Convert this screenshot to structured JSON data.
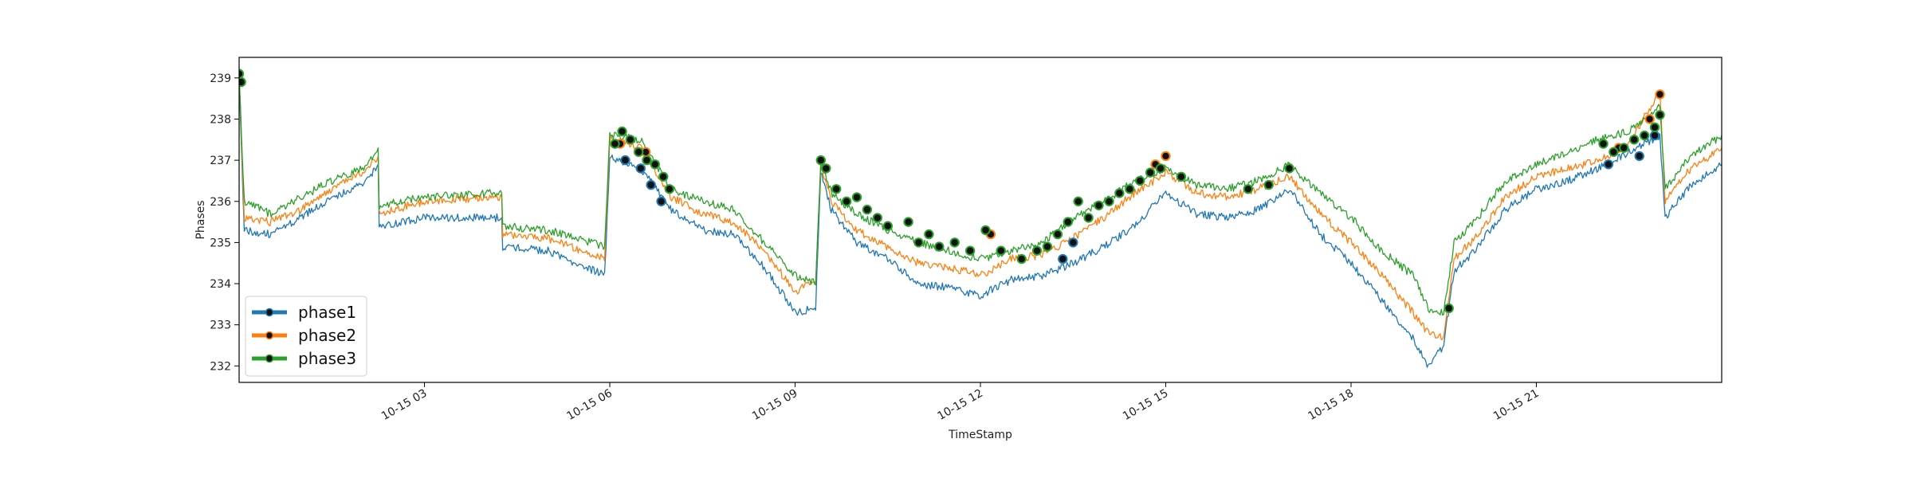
{
  "chart_data": {
    "type": "line",
    "title": "",
    "xlabel": "TimeStamp",
    "ylabel": "Phases",
    "x_range": [
      "2023-10-15 00:00",
      "2023-10-16 00:00"
    ],
    "ylim": [
      231.6,
      239.5
    ],
    "y_ticks": [
      232,
      233,
      234,
      235,
      236,
      237,
      238,
      239
    ],
    "x_ticks": [
      {
        "t": "2023-10-15 03:00",
        "label": "10-15 03"
      },
      {
        "t": "2023-10-15 06:00",
        "label": "10-15 06"
      },
      {
        "t": "2023-10-15 09:00",
        "label": "10-15 09"
      },
      {
        "t": "2023-10-15 12:00",
        "label": "10-15 12"
      },
      {
        "t": "2023-10-15 15:00",
        "label": "10-15 15"
      },
      {
        "t": "2023-10-15 18:00",
        "label": "10-15 18"
      },
      {
        "t": "2023-10-15 21:00",
        "label": "10-15 21"
      }
    ],
    "grid": false,
    "legend_position": "lower-left",
    "series": [
      {
        "name": "phase1",
        "color": "#1f77b4",
        "points": [
          [
            "2023-10-15 00:00",
            238.9
          ],
          [
            "2023-10-15 00:05",
            235.3
          ],
          [
            "2023-10-15 00:30",
            235.2
          ],
          [
            "2023-10-15 01:00",
            235.6
          ],
          [
            "2023-10-15 01:30",
            236.1
          ],
          [
            "2023-10-15 02:00",
            236.4
          ],
          [
            "2023-10-15 02:15",
            236.9
          ],
          [
            "2023-10-15 02:16",
            235.4
          ],
          [
            "2023-10-15 03:00",
            235.6
          ],
          [
            "2023-10-15 04:00",
            235.6
          ],
          [
            "2023-10-15 04:15",
            235.6
          ],
          [
            "2023-10-15 04:16",
            234.9
          ],
          [
            "2023-10-15 05:00",
            234.8
          ],
          [
            "2023-10-15 05:55",
            234.2
          ],
          [
            "2023-10-15 06:00",
            237.1
          ],
          [
            "2023-10-15 06:30",
            236.8
          ],
          [
            "2023-10-15 07:00",
            235.8
          ],
          [
            "2023-10-15 07:30",
            235.3
          ],
          [
            "2023-10-15 08:00",
            235.2
          ],
          [
            "2023-10-15 08:30",
            234.4
          ],
          [
            "2023-10-15 09:00",
            233.3
          ],
          [
            "2023-10-15 09:20",
            233.4
          ],
          [
            "2023-10-15 09:25",
            236.7
          ],
          [
            "2023-10-15 09:35",
            235.8
          ],
          [
            "2023-10-15 10:00",
            235.0
          ],
          [
            "2023-10-15 10:30",
            234.6
          ],
          [
            "2023-10-15 11:00",
            234.0
          ],
          [
            "2023-10-15 11:30",
            233.9
          ],
          [
            "2023-10-15 12:00",
            233.7
          ],
          [
            "2023-10-15 12:30",
            234.1
          ],
          [
            "2023-10-15 13:00",
            234.2
          ],
          [
            "2023-10-15 13:30",
            234.5
          ],
          [
            "2023-10-15 14:00",
            234.9
          ],
          [
            "2023-10-15 14:30",
            235.4
          ],
          [
            "2023-10-15 15:00",
            236.2
          ],
          [
            "2023-10-15 15:30",
            235.7
          ],
          [
            "2023-10-15 16:00",
            235.6
          ],
          [
            "2023-10-15 16:30",
            235.8
          ],
          [
            "2023-10-15 17:00",
            236.3
          ],
          [
            "2023-10-15 17:30",
            235.2
          ],
          [
            "2023-10-15 18:00",
            234.5
          ],
          [
            "2023-10-15 18:30",
            233.6
          ],
          [
            "2023-10-15 19:00",
            232.7
          ],
          [
            "2023-10-15 19:15",
            232.0
          ],
          [
            "2023-10-15 19:30",
            232.5
          ],
          [
            "2023-10-15 19:40",
            234.3
          ],
          [
            "2023-10-15 20:00",
            234.8
          ],
          [
            "2023-10-15 20:30",
            235.8
          ],
          [
            "2023-10-15 21:00",
            236.3
          ],
          [
            "2023-10-15 21:30",
            236.5
          ],
          [
            "2023-10-15 22:00",
            236.8
          ],
          [
            "2023-10-15 22:30",
            237.2
          ],
          [
            "2023-10-15 23:00",
            237.6
          ],
          [
            "2023-10-15 23:05",
            235.6
          ],
          [
            "2023-10-15 23:30",
            236.4
          ],
          [
            "2023-10-16 00:00",
            236.9
          ]
        ],
        "markers": [
          [
            "2023-10-15 06:15",
            237.0
          ],
          [
            "2023-10-15 06:30",
            236.8
          ],
          [
            "2023-10-15 06:40",
            236.4
          ],
          [
            "2023-10-15 06:50",
            236.0
          ],
          [
            "2023-10-15 13:20",
            234.6
          ],
          [
            "2023-10-15 13:30",
            235.0
          ],
          [
            "2023-10-15 22:10",
            236.9
          ],
          [
            "2023-10-15 22:40",
            237.1
          ],
          [
            "2023-10-15 22:55",
            237.6
          ]
        ]
      },
      {
        "name": "phase2",
        "color": "#ff7f0e",
        "points": [
          [
            "2023-10-15 00:00",
            239.1
          ],
          [
            "2023-10-15 00:05",
            235.6
          ],
          [
            "2023-10-15 00:30",
            235.5
          ],
          [
            "2023-10-15 01:00",
            235.8
          ],
          [
            "2023-10-15 01:30",
            236.3
          ],
          [
            "2023-10-15 02:00",
            236.7
          ],
          [
            "2023-10-15 02:15",
            237.1
          ],
          [
            "2023-10-15 02:16",
            235.7
          ],
          [
            "2023-10-15 03:00",
            236.0
          ],
          [
            "2023-10-15 04:00",
            236.1
          ],
          [
            "2023-10-15 04:15",
            236.1
          ],
          [
            "2023-10-15 04:16",
            235.2
          ],
          [
            "2023-10-15 05:00",
            235.1
          ],
          [
            "2023-10-15 05:55",
            234.6
          ],
          [
            "2023-10-15 06:00",
            237.5
          ],
          [
            "2023-10-15 06:30",
            237.3
          ],
          [
            "2023-10-15 07:00",
            236.1
          ],
          [
            "2023-10-15 07:30",
            235.7
          ],
          [
            "2023-10-15 08:00",
            235.5
          ],
          [
            "2023-10-15 08:30",
            234.8
          ],
          [
            "2023-10-15 09:00",
            233.8
          ],
          [
            "2023-10-15 09:20",
            234.1
          ],
          [
            "2023-10-15 09:25",
            236.9
          ],
          [
            "2023-10-15 09:35",
            236.0
          ],
          [
            "2023-10-15 10:00",
            235.3
          ],
          [
            "2023-10-15 10:30",
            234.9
          ],
          [
            "2023-10-15 11:00",
            234.5
          ],
          [
            "2023-10-15 11:30",
            234.4
          ],
          [
            "2023-10-15 12:00",
            234.2
          ],
          [
            "2023-10-15 12:30",
            234.6
          ],
          [
            "2023-10-15 13:00",
            234.7
          ],
          [
            "2023-10-15 13:30",
            235.1
          ],
          [
            "2023-10-15 14:00",
            235.6
          ],
          [
            "2023-10-15 14:30",
            236.2
          ],
          [
            "2023-10-15 15:00",
            236.7
          ],
          [
            "2023-10-15 15:30",
            236.2
          ],
          [
            "2023-10-15 16:00",
            236.1
          ],
          [
            "2023-10-15 16:30",
            236.3
          ],
          [
            "2023-10-15 17:00",
            236.6
          ],
          [
            "2023-10-15 17:30",
            235.7
          ],
          [
            "2023-10-15 18:00",
            235.0
          ],
          [
            "2023-10-15 18:30",
            234.2
          ],
          [
            "2023-10-15 19:00",
            233.3
          ],
          [
            "2023-10-15 19:15",
            232.8
          ],
          [
            "2023-10-15 19:30",
            232.7
          ],
          [
            "2023-10-15 19:40",
            234.6
          ],
          [
            "2023-10-15 20:00",
            235.1
          ],
          [
            "2023-10-15 20:30",
            236.1
          ],
          [
            "2023-10-15 21:00",
            236.6
          ],
          [
            "2023-10-15 21:30",
            236.8
          ],
          [
            "2023-10-15 22:00",
            237.0
          ],
          [
            "2023-10-15 22:30",
            237.4
          ],
          [
            "2023-10-15 23:00",
            238.7
          ],
          [
            "2023-10-15 23:05",
            236.0
          ],
          [
            "2023-10-15 23:30",
            236.8
          ],
          [
            "2023-10-16 00:00",
            237.3
          ]
        ],
        "markers": [
          [
            "2023-10-15 06:10",
            237.4
          ],
          [
            "2023-10-15 06:35",
            237.2
          ],
          [
            "2023-10-15 12:10",
            235.2
          ],
          [
            "2023-10-15 14:50",
            236.9
          ],
          [
            "2023-10-15 15:00",
            237.1
          ],
          [
            "2023-10-15 22:20",
            237.3
          ],
          [
            "2023-10-15 22:50",
            238.0
          ],
          [
            "2023-10-15 23:00",
            238.6
          ]
        ]
      },
      {
        "name": "phase3",
        "color": "#2ca02c",
        "points": [
          [
            "2023-10-15 00:00",
            239.1
          ],
          [
            "2023-10-15 00:05",
            236.0
          ],
          [
            "2023-10-15 00:30",
            235.7
          ],
          [
            "2023-10-15 01:00",
            236.1
          ],
          [
            "2023-10-15 01:30",
            236.5
          ],
          [
            "2023-10-15 02:00",
            236.8
          ],
          [
            "2023-10-15 02:15",
            237.3
          ],
          [
            "2023-10-15 02:16",
            235.9
          ],
          [
            "2023-10-15 03:00",
            236.1
          ],
          [
            "2023-10-15 04:00",
            236.2
          ],
          [
            "2023-10-15 04:15",
            236.2
          ],
          [
            "2023-10-15 04:16",
            235.4
          ],
          [
            "2023-10-15 05:00",
            235.3
          ],
          [
            "2023-10-15 05:55",
            234.9
          ],
          [
            "2023-10-15 06:00",
            237.6
          ],
          [
            "2023-10-15 06:30",
            237.5
          ],
          [
            "2023-10-15 07:00",
            236.3
          ],
          [
            "2023-10-15 07:30",
            236.0
          ],
          [
            "2023-10-15 08:00",
            235.8
          ],
          [
            "2023-10-15 08:30",
            235.0
          ],
          [
            "2023-10-15 09:00",
            234.2
          ],
          [
            "2023-10-15 09:20",
            234.0
          ],
          [
            "2023-10-15 09:25",
            237.0
          ],
          [
            "2023-10-15 09:35",
            236.2
          ],
          [
            "2023-10-15 10:00",
            235.7
          ],
          [
            "2023-10-15 10:30",
            235.3
          ],
          [
            "2023-10-15 11:00",
            235.0
          ],
          [
            "2023-10-15 11:30",
            234.8
          ],
          [
            "2023-10-15 12:00",
            234.6
          ],
          [
            "2023-10-15 12:30",
            234.8
          ],
          [
            "2023-10-15 13:00",
            235.0
          ],
          [
            "2023-10-15 13:30",
            235.6
          ],
          [
            "2023-10-15 14:00",
            236.0
          ],
          [
            "2023-10-15 14:30",
            236.5
          ],
          [
            "2023-10-15 15:00",
            236.8
          ],
          [
            "2023-10-15 15:30",
            236.4
          ],
          [
            "2023-10-15 16:00",
            236.3
          ],
          [
            "2023-10-15 16:30",
            236.5
          ],
          [
            "2023-10-15 17:00",
            236.9
          ],
          [
            "2023-10-15 17:30",
            236.2
          ],
          [
            "2023-10-15 18:00",
            235.6
          ],
          [
            "2023-10-15 18:30",
            234.8
          ],
          [
            "2023-10-15 19:00",
            234.2
          ],
          [
            "2023-10-15 19:15",
            233.4
          ],
          [
            "2023-10-15 19:30",
            233.3
          ],
          [
            "2023-10-15 19:40",
            235.0
          ],
          [
            "2023-10-15 20:00",
            235.5
          ],
          [
            "2023-10-15 20:30",
            236.5
          ],
          [
            "2023-10-15 21:00",
            236.9
          ],
          [
            "2023-10-15 21:30",
            237.2
          ],
          [
            "2023-10-15 22:00",
            237.5
          ],
          [
            "2023-10-15 22:30",
            237.7
          ],
          [
            "2023-10-15 23:00",
            238.3
          ],
          [
            "2023-10-15 23:05",
            236.3
          ],
          [
            "2023-10-15 23:30",
            237.1
          ],
          [
            "2023-10-16 00:00",
            237.6
          ]
        ],
        "markers": [
          [
            "2023-10-15 00:00",
            239.1
          ],
          [
            "2023-10-15 00:02",
            238.9
          ],
          [
            "2023-10-15 06:05",
            237.4
          ],
          [
            "2023-10-15 06:12",
            237.7
          ],
          [
            "2023-10-15 06:20",
            237.5
          ],
          [
            "2023-10-15 06:28",
            237.2
          ],
          [
            "2023-10-15 06:36",
            237.0
          ],
          [
            "2023-10-15 06:44",
            236.9
          ],
          [
            "2023-10-15 06:52",
            236.6
          ],
          [
            "2023-10-15 06:58",
            236.3
          ],
          [
            "2023-10-15 09:25",
            237.0
          ],
          [
            "2023-10-15 09:30",
            236.8
          ],
          [
            "2023-10-15 09:40",
            236.3
          ],
          [
            "2023-10-15 09:50",
            236.0
          ],
          [
            "2023-10-15 10:00",
            236.1
          ],
          [
            "2023-10-15 10:10",
            235.8
          ],
          [
            "2023-10-15 10:20",
            235.6
          ],
          [
            "2023-10-15 10:30",
            235.4
          ],
          [
            "2023-10-15 10:50",
            235.5
          ],
          [
            "2023-10-15 11:00",
            235.0
          ],
          [
            "2023-10-15 11:10",
            235.2
          ],
          [
            "2023-10-15 11:20",
            234.9
          ],
          [
            "2023-10-15 11:35",
            235.0
          ],
          [
            "2023-10-15 11:50",
            234.8
          ],
          [
            "2023-10-15 12:05",
            235.3
          ],
          [
            "2023-10-15 12:20",
            234.8
          ],
          [
            "2023-10-15 12:40",
            234.6
          ],
          [
            "2023-10-15 12:55",
            234.8
          ],
          [
            "2023-10-15 13:05",
            234.9
          ],
          [
            "2023-10-15 13:15",
            235.2
          ],
          [
            "2023-10-15 13:25",
            235.5
          ],
          [
            "2023-10-15 13:35",
            236.0
          ],
          [
            "2023-10-15 13:45",
            235.6
          ],
          [
            "2023-10-15 13:55",
            235.9
          ],
          [
            "2023-10-15 14:05",
            236.0
          ],
          [
            "2023-10-15 14:15",
            236.2
          ],
          [
            "2023-10-15 14:25",
            236.3
          ],
          [
            "2023-10-15 14:35",
            236.5
          ],
          [
            "2023-10-15 14:45",
            236.7
          ],
          [
            "2023-10-15 14:55",
            236.8
          ],
          [
            "2023-10-15 15:15",
            236.6
          ],
          [
            "2023-10-15 16:20",
            236.3
          ],
          [
            "2023-10-15 16:40",
            236.4
          ],
          [
            "2023-10-15 17:00",
            236.8
          ],
          [
            "2023-10-15 19:35",
            233.4
          ],
          [
            "2023-10-15 22:05",
            237.4
          ],
          [
            "2023-10-15 22:15",
            237.2
          ],
          [
            "2023-10-15 22:25",
            237.3
          ],
          [
            "2023-10-15 22:35",
            237.5
          ],
          [
            "2023-10-15 22:45",
            237.6
          ],
          [
            "2023-10-15 22:55",
            237.8
          ],
          [
            "2023-10-15 23:00",
            238.1
          ]
        ]
      }
    ]
  }
}
